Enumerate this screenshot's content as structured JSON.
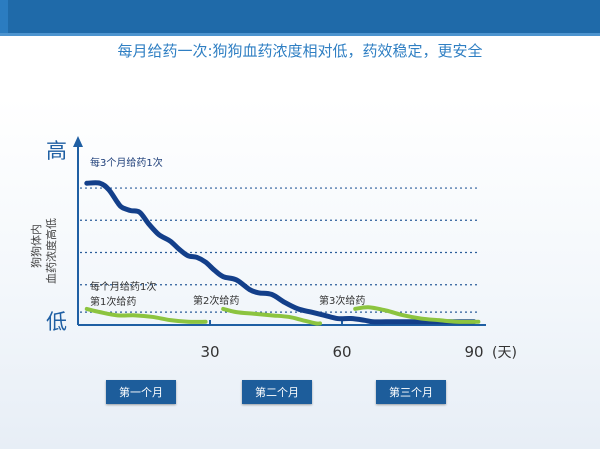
{
  "subtitle": "每月给药一次:狗狗血药浓度相对低，药效稳定，更安全",
  "chart_data": {
    "type": "line",
    "ylabel_lines": [
      "狗狗体内",
      "血药浓度高低"
    ],
    "y_high_label": "高",
    "y_low_label": "低",
    "x_ticks": [
      30,
      60,
      90
    ],
    "x_unit": "(天)",
    "xlim": [
      0,
      92
    ],
    "grid": "dotted-horizontal",
    "annotations": {
      "quarterly": "每3个月给药1次",
      "monthly": "每个月给药1次",
      "dose1": "第1次给药",
      "dose2": "第2次给药",
      "dose3": "第3次给药"
    },
    "series": [
      {
        "name": "每3个月给药1次",
        "color": "#133f8a",
        "x": [
          2,
          5,
          7,
          9,
          10,
          12,
          14,
          16,
          18,
          19,
          21,
          23,
          25,
          27,
          29,
          31,
          33,
          36,
          39,
          41,
          44,
          47,
          50,
          53,
          56,
          59,
          62,
          65,
          67,
          70,
          74,
          78,
          82,
          86,
          90
        ],
        "y": [
          0.88,
          0.88,
          0.84,
          0.76,
          0.73,
          0.71,
          0.7,
          0.63,
          0.57,
          0.55,
          0.52,
          0.47,
          0.43,
          0.42,
          0.39,
          0.34,
          0.3,
          0.28,
          0.22,
          0.2,
          0.19,
          0.14,
          0.1,
          0.08,
          0.06,
          0.04,
          0.04,
          0.03,
          0.02,
          0.02,
          0.02,
          0.02,
          0.02,
          0.02,
          0.02
        ]
      },
      {
        "name": "每个月给药1次 (1)",
        "color": "#8cc43f",
        "x": [
          2,
          5,
          9,
          13,
          17,
          21,
          25,
          29
        ],
        "y": [
          0.1,
          0.08,
          0.06,
          0.06,
          0.05,
          0.03,
          0.02,
          0.02
        ]
      },
      {
        "name": "每个月给药1次 (2)",
        "color": "#8cc43f",
        "x": [
          33,
          36,
          40,
          44,
          48,
          51,
          54,
          55
        ],
        "y": [
          0.1,
          0.08,
          0.07,
          0.06,
          0.05,
          0.03,
          0.01,
          0.01
        ]
      },
      {
        "name": "每个月给药1次 (3)",
        "color": "#8cc43f",
        "x": [
          63,
          66,
          70,
          74,
          78,
          82,
          86,
          91
        ],
        "y": [
          0.1,
          0.11,
          0.09,
          0.06,
          0.04,
          0.03,
          0.02,
          0.02
        ]
      }
    ]
  },
  "months": [
    "第一个月",
    "第二个月",
    "第三个月"
  ]
}
